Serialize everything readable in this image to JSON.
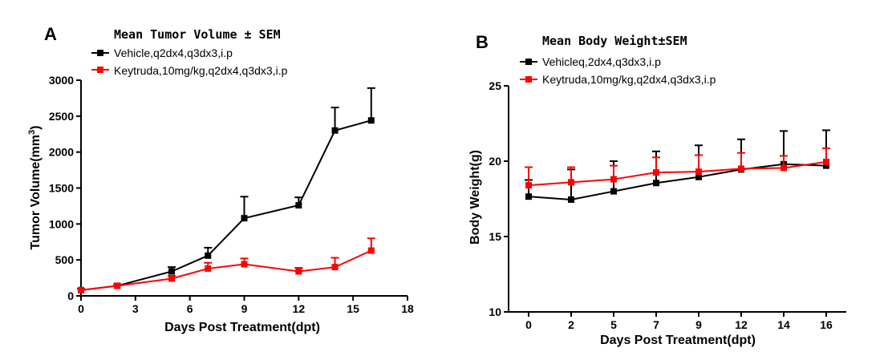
{
  "chart_data": [
    {
      "type": "line",
      "panel": "A",
      "title": "Mean Tumor Volume ± SEM",
      "xlabel": "Days Post Treatment(dpt)",
      "ylabel": "Tumor Volume(mm",
      "ylabel_sup": "3",
      "ylabel_close": ")",
      "xlim": [
        0,
        18
      ],
      "ylim": [
        0,
        3000
      ],
      "x_ticks": [
        "0",
        "3",
        "6",
        "9",
        "12",
        "15",
        "18"
      ],
      "y_ticks": [
        "0",
        "500",
        "1000",
        "1500",
        "2000",
        "2500",
        "3000"
      ],
      "series": [
        {
          "name": "Vehicle,q2dx4,q3dx3,i.p",
          "color": "#000000",
          "x": [
            0,
            2,
            5,
            7,
            9,
            12,
            14,
            16
          ],
          "values": [
            80,
            140,
            340,
            560,
            1080,
            1260,
            2300,
            2440
          ],
          "sem": [
            20,
            20,
            60,
            110,
            300,
            110,
            320,
            450
          ]
        },
        {
          "name": "Keytruda,10mg/kg,q2dx4,q3dx3,i.p",
          "color": "#ff0000",
          "x": [
            0,
            2,
            5,
            7,
            9,
            12,
            14,
            16
          ],
          "values": [
            80,
            140,
            240,
            380,
            440,
            340,
            400,
            630
          ],
          "sem": [
            15,
            20,
            40,
            80,
            80,
            50,
            130,
            170
          ]
        }
      ]
    },
    {
      "type": "line",
      "panel": "B",
      "title": "Mean Body Weight±SEM",
      "xlabel": "Days Post Treatment(dpt)",
      "ylabel": "Body Weight(g)",
      "ylim": [
        10,
        25
      ],
      "categories": [
        "0",
        "2",
        "5",
        "7",
        "9",
        "12",
        "14",
        "16"
      ],
      "y_ticks": [
        "10",
        "15",
        "20",
        "25"
      ],
      "series": [
        {
          "name": "Vehicleq,2dx4,q3dx3,i.p",
          "color": "#000000",
          "values": [
            17.65,
            17.45,
            18.0,
            18.55,
            18.95,
            19.45,
            19.8,
            19.7
          ],
          "sem": [
            1.1,
            2.0,
            2.0,
            2.1,
            2.1,
            2.0,
            2.2,
            2.35
          ]
        },
        {
          "name": "Keytruda,10mg/kg,q2dx4,q3dx3,i.p",
          "color": "#ff0000",
          "values": [
            18.4,
            18.6,
            18.8,
            19.25,
            19.3,
            19.5,
            19.55,
            19.95
          ],
          "sem": [
            1.2,
            1.0,
            0.9,
            1.0,
            1.1,
            1.05,
            0.8,
            0.9
          ]
        }
      ]
    }
  ]
}
